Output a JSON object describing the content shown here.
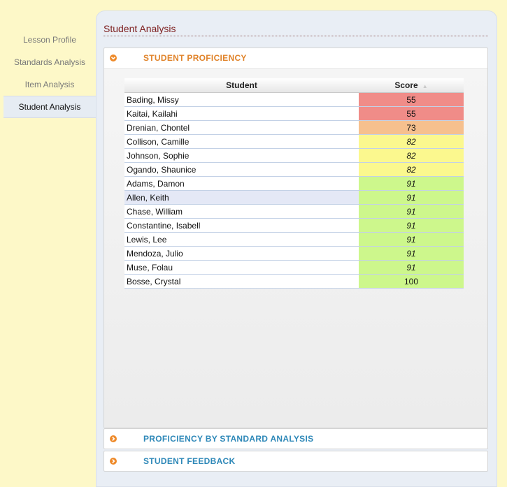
{
  "nav": {
    "items": [
      {
        "label": "Lesson Profile",
        "active": false
      },
      {
        "label": "Standards Analysis",
        "active": false
      },
      {
        "label": "Item Analysis",
        "active": false
      },
      {
        "label": "Student Analysis",
        "active": true
      }
    ]
  },
  "page": {
    "title": "Student Analysis"
  },
  "sections": {
    "proficiency": {
      "title": "STUDENT PROFICIENCY",
      "expanded": true
    },
    "standards": {
      "title": "PROFICIENCY BY STANDARD ANALYSIS",
      "expanded": false
    },
    "feedback": {
      "title": "STUDENT FEEDBACK",
      "expanded": false
    }
  },
  "table": {
    "headers": {
      "student": "Student",
      "score": "Score"
    },
    "sort_icon": "sort-ascending-icon",
    "rows": [
      {
        "student": "Bading, Missy",
        "score": "55",
        "level": "red",
        "italic": false
      },
      {
        "student": "Kaitai, Kailahi",
        "score": "55",
        "level": "red",
        "italic": false
      },
      {
        "student": "Drenian, Chontel",
        "score": "73",
        "level": "orange",
        "italic": false
      },
      {
        "student": "Collison, Camille",
        "score": "82",
        "level": "yellow",
        "italic": true
      },
      {
        "student": "Johnson, Sophie",
        "score": "82",
        "level": "yellow",
        "italic": true
      },
      {
        "student": "Ogando, Shaunice",
        "score": "82",
        "level": "yellow",
        "italic": true
      },
      {
        "student": "Adams, Damon",
        "score": "91",
        "level": "green",
        "italic": true
      },
      {
        "student": "Allen, Keith",
        "score": "91",
        "level": "green",
        "italic": true,
        "highlighted": true
      },
      {
        "student": "Chase, William",
        "score": "91",
        "level": "green",
        "italic": true
      },
      {
        "student": "Constantine, Isabell",
        "score": "91",
        "level": "green",
        "italic": true
      },
      {
        "student": "Lewis, Lee",
        "score": "91",
        "level": "green",
        "italic": true
      },
      {
        "student": "Mendoza, Julio",
        "score": "91",
        "level": "green",
        "italic": true
      },
      {
        "student": "Muse, Folau",
        "score": "91",
        "level": "green",
        "italic": true
      },
      {
        "student": "Bosse, Crystal",
        "score": "100",
        "level": "green",
        "italic": false
      }
    ]
  },
  "colors": {
    "background": "#fdf8c8",
    "title": "#7d1e1e",
    "open_section": "#e0832a",
    "closed_section": "#2e88b8",
    "red": "#f08c88",
    "orange": "#f6c08e",
    "yellow": "#fbf88e",
    "green": "#cdf78c"
  }
}
